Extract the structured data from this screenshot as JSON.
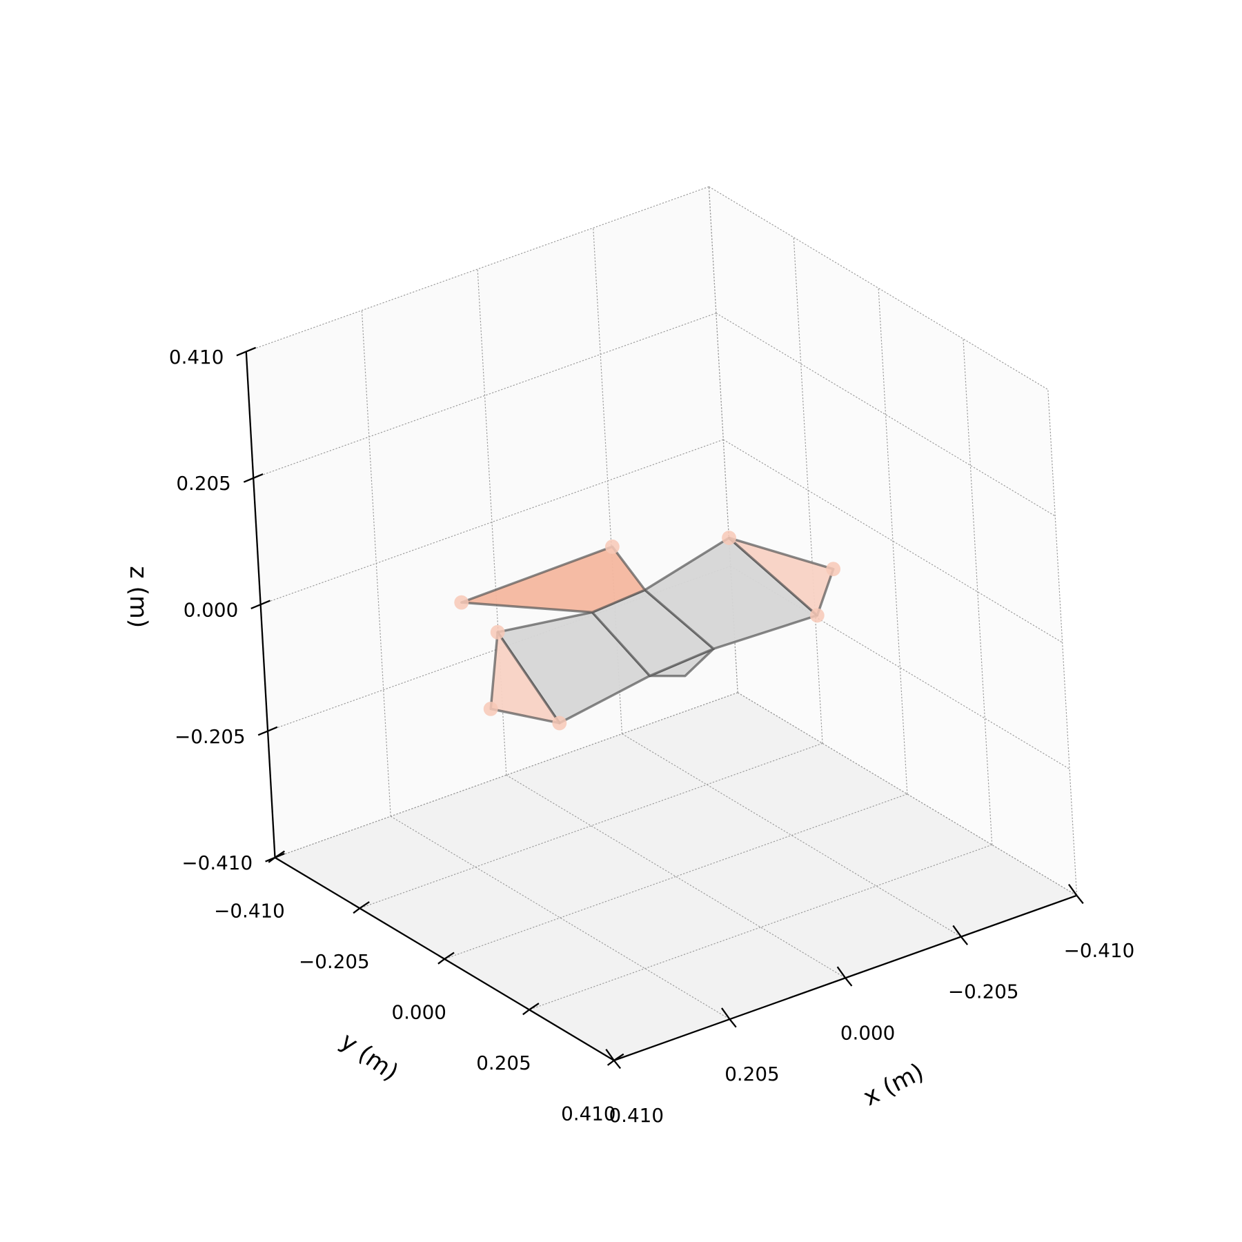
{
  "chart_data": {
    "type": "surface3d",
    "xlabel": "x (m)",
    "ylabel": "y (m)",
    "zlabel": "z (m)",
    "xlim": [
      -0.41,
      0.41
    ],
    "ylim": [
      -0.41,
      0.41
    ],
    "zlim": [
      -0.41,
      0.41
    ],
    "xticks": [
      {
        "value": -0.41,
        "label": "−0.410"
      },
      {
        "value": -0.205,
        "label": "−0.205"
      },
      {
        "value": 0,
        "label": "0.000"
      },
      {
        "value": 0.205,
        "label": "0.205"
      },
      {
        "value": 0.41,
        "label": "0.410"
      }
    ],
    "yticks": [
      {
        "value": -0.41,
        "label": "−0.410"
      },
      {
        "value": -0.205,
        "label": "−0.205"
      },
      {
        "value": 0,
        "label": "0.000"
      },
      {
        "value": 0.205,
        "label": "0.205"
      },
      {
        "value": 0.41,
        "label": "0.410"
      }
    ],
    "zticks": [
      {
        "value": -0.41,
        "label": "−0.410"
      },
      {
        "value": -0.205,
        "label": "−0.205"
      },
      {
        "value": 0,
        "label": "0.000"
      },
      {
        "value": 0.205,
        "label": "0.205"
      },
      {
        "value": 0.41,
        "label": "0.410"
      }
    ],
    "grid": true,
    "polygons": [
      {
        "color": "#d6d6d6",
        "x": [
          0.198,
          0.056,
          0.11,
          0.298
        ],
        "y": [
          -0.126,
          -0.091,
          0.122,
          0.16
        ],
        "z": [
          0,
          0,
          0,
          0
        ]
      },
      {
        "color": "#d6d6d6",
        "x": [
          0.11,
          0.071,
          -0.011
        ],
        "y": [
          0.122,
          0.154,
          0.111
        ],
        "z": [
          0,
          0,
          0
        ]
      },
      {
        "color": "#d6d6d6",
        "x": [
          0.056,
          -0.044,
          -0.011,
          0.11
        ],
        "y": [
          -0.091,
          -0.1,
          0.111,
          0.122
        ],
        "z": [
          0,
          0,
          0,
          0
        ]
      },
      {
        "color": "#d6d6d6",
        "x": [
          -0.044,
          -0.234,
          -0.188,
          -0.011
        ],
        "y": [
          -0.1,
          -0.156,
          0.12,
          0.111
        ],
        "z": [
          0,
          0,
          0,
          0
        ]
      },
      {
        "color": "#f8d2c4",
        "x": [
          0.198,
          0.298,
          0.348
        ],
        "y": [
          -0.126,
          0.16,
          0.062
        ],
        "z": [
          0,
          0,
          0
        ]
      },
      {
        "color": "#f8d2c4",
        "x": [
          -0.234,
          -0.292,
          -0.188
        ],
        "y": [
          -0.156,
          0.017,
          0.12
        ],
        "z": [
          0,
          0,
          0
        ]
      },
      {
        "color": "#f4b79f",
        "x": [
          0.183,
          -0.088,
          -0.044,
          0.056
        ],
        "y": [
          -0.234,
          -0.239,
          -0.1,
          -0.091
        ],
        "z": [
          0,
          0,
          0,
          0
        ]
      }
    ],
    "markers": {
      "color": "#f7c8b6",
      "x": [
        0.183,
        -0.088,
        0.198,
        0.348,
        0.298,
        -0.234,
        -0.292,
        -0.188
      ],
      "y": [
        -0.234,
        -0.239,
        -0.126,
        0.062,
        0.16,
        -0.156,
        0.017,
        0.12
      ],
      "z": [
        0,
        0,
        0,
        0,
        0,
        0,
        0,
        0
      ]
    }
  }
}
